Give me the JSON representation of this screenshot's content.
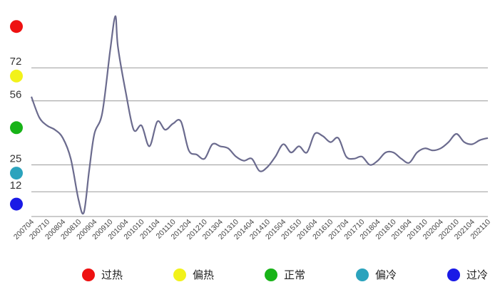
{
  "chart_data": {
    "type": "line",
    "title": "",
    "xlabel": "",
    "ylabel": "",
    "ylim": [
      0,
      100
    ],
    "y_ticks": [
      12,
      25,
      56,
      72
    ],
    "grid": "horizontal",
    "legend_position": "bottom",
    "line_color": "#6b6b8e",
    "x_tick_labels": [
      "200704",
      "200710",
      "200804",
      "200810",
      "200904",
      "200910",
      "201004",
      "201010",
      "201104",
      "201110",
      "201204",
      "201210",
      "201304",
      "201310",
      "201404",
      "201410",
      "201504",
      "201510",
      "201604",
      "201610",
      "201704",
      "201710",
      "201804",
      "201810",
      "201904",
      "201910",
      "202004",
      "202010",
      "202104",
      "202110"
    ],
    "series": [
      {
        "x": [
          "200704",
          "200707",
          "200710",
          "200801",
          "200804",
          "200807",
          "200810",
          "200812",
          "200902",
          "200904",
          "200907",
          "200910",
          "200912",
          "201001",
          "201004",
          "201007",
          "201010",
          "201101",
          "201104",
          "201107",
          "201110",
          "201201",
          "201204",
          "201207",
          "201210",
          "201301",
          "201304",
          "201307",
          "201310",
          "201401",
          "201404",
          "201407",
          "201410",
          "201501",
          "201504",
          "201507",
          "201510",
          "201601",
          "201604",
          "201607",
          "201610",
          "201701",
          "201704",
          "201707",
          "201710",
          "201801",
          "201804",
          "201807",
          "201810",
          "201901",
          "201904",
          "201907",
          "201910",
          "202001",
          "202004",
          "202007",
          "202010",
          "202101",
          "202104",
          "202107",
          "202110"
        ],
        "values": [
          58,
          48,
          44,
          42,
          38,
          28,
          8,
          2,
          22,
          40,
          50,
          80,
          97,
          82,
          60,
          42,
          44,
          34,
          46,
          42,
          45,
          46,
          32,
          30,
          28,
          35,
          34,
          33,
          29,
          27,
          28,
          22,
          24,
          29,
          35,
          31,
          34,
          31,
          40,
          39,
          36,
          38,
          29,
          28,
          29,
          25,
          27,
          31,
          31,
          28,
          26,
          31,
          33,
          32,
          33,
          36,
          40,
          36,
          35,
          37,
          38
        ]
      }
    ],
    "level_markers": [
      {
        "label": "过热",
        "color": "#ee1111",
        "y": 92
      },
      {
        "label": "偏热",
        "color": "#f2f21a",
        "y": 68
      },
      {
        "label": "正常",
        "color": "#18b318",
        "y": 43
      },
      {
        "label": "偏冷",
        "color": "#2ba3bd",
        "y": 21
      },
      {
        "label": "过冷",
        "color": "#1a1ae6",
        "y": 6
      }
    ],
    "legend": [
      {
        "label": "过热",
        "color": "#ee1111"
      },
      {
        "label": "偏热",
        "color": "#f2f21a"
      },
      {
        "label": "正常",
        "color": "#18b318"
      },
      {
        "label": "偏冷",
        "color": "#2ba3bd"
      },
      {
        "label": "过冷",
        "color": "#1a1ae6"
      }
    ]
  }
}
